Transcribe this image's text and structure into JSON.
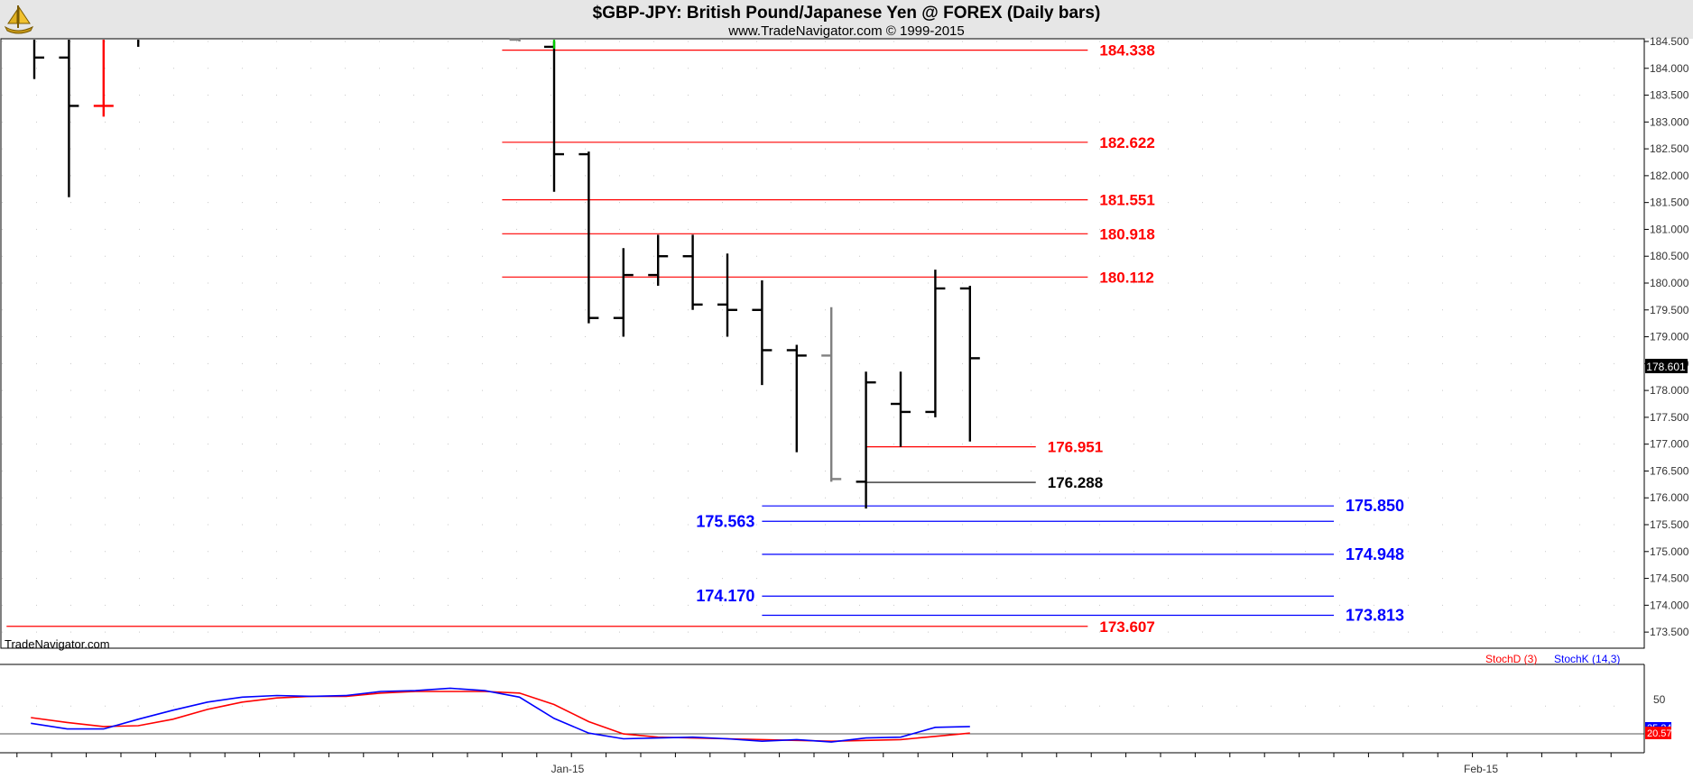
{
  "header": {
    "title": "$GBP-JPY:  British Pound/Japanese Yen @ FOREX  (Daily bars)",
    "subtitle": "www.TradeNavigator.com © 1999-2015",
    "logo_icon": "gold-ship-logo-icon"
  },
  "colors": {
    "background": "#ffffff",
    "header_bg": "#e6e6e6",
    "bar": "#000000",
    "bar_gray": "#808080",
    "bar_red": "#ff0000",
    "bar_green": "#00cc00",
    "red_level": "#ff0000",
    "blue_level": "#0000ff",
    "black_level": "#000000",
    "stoch_d": "#ff0000",
    "stoch_k": "#0000ff"
  },
  "chart_data": [
    {
      "type": "ohlc",
      "title": "$GBP-JPY:  British Pound/Japanese Yen @ FOREX  (Daily bars)",
      "ylim": [
        173.2,
        184.55
      ],
      "y_ticks": [
        "184.500",
        "184.000",
        "183.500",
        "183.000",
        "182.500",
        "182.000",
        "181.500",
        "181.000",
        "180.500",
        "180.000",
        "179.500",
        "179.000",
        "178.500",
        "178.000",
        "177.500",
        "177.000",
        "176.500",
        "176.000",
        "175.500",
        "175.000",
        "174.500",
        "174.000",
        "173.500"
      ],
      "x_labels": [
        "Jan-15",
        "Feb-15"
      ],
      "last_price": "178.601",
      "watermark": "TradeNavigator.com",
      "bars": [
        {
          "idx": 0,
          "open": null,
          "high": 184.6,
          "low": 183.8,
          "close": 184.2,
          "color": "black"
        },
        {
          "idx": 1,
          "open": 184.2,
          "high": 184.6,
          "low": 181.6,
          "close": 183.3,
          "color": "black"
        },
        {
          "idx": 2,
          "open": 183.3,
          "high": 184.6,
          "low": 183.1,
          "close": 183.3,
          "color": "red"
        },
        {
          "idx": 3,
          "open": null,
          "high": 184.6,
          "low": 184.4,
          "close": null,
          "color": "black"
        },
        {
          "idx": 14,
          "open": 184.6,
          "high": 184.6,
          "low": 184.5,
          "close": null,
          "color": "gray"
        },
        {
          "idx": 15,
          "open": 184.4,
          "high": 184.5,
          "low": 181.7,
          "close": 182.4,
          "color": "black"
        },
        {
          "idx": 16,
          "open": 182.4,
          "high": 182.45,
          "low": 179.25,
          "close": 179.35,
          "color": "black"
        },
        {
          "idx": 17,
          "open": 179.35,
          "high": 180.65,
          "low": 179.0,
          "close": 180.15,
          "color": "black"
        },
        {
          "idx": 18,
          "open": 180.15,
          "high": 180.9,
          "low": 179.95,
          "close": 180.5,
          "color": "black"
        },
        {
          "idx": 19,
          "open": 180.5,
          "high": 180.9,
          "low": 179.5,
          "close": 179.6,
          "color": "black"
        },
        {
          "idx": 20,
          "open": 179.6,
          "high": 180.55,
          "low": 179.0,
          "close": 179.5,
          "color": "black"
        },
        {
          "idx": 21,
          "open": 179.5,
          "high": 180.05,
          "low": 178.1,
          "close": 178.75,
          "color": "black"
        },
        {
          "idx": 22,
          "open": 178.75,
          "high": 178.85,
          "low": 176.85,
          "close": 178.65,
          "color": "black"
        },
        {
          "idx": 23,
          "open": 178.65,
          "high": 179.55,
          "low": 176.3,
          "close": 176.35,
          "color": "gray"
        },
        {
          "idx": 24,
          "open": 176.3,
          "high": 178.35,
          "low": 175.8,
          "close": 178.15,
          "color": "black"
        },
        {
          "idx": 25,
          "open": 177.75,
          "high": 178.35,
          "low": 176.95,
          "close": 177.6,
          "color": "black"
        },
        {
          "idx": 26,
          "open": 177.6,
          "high": 180.25,
          "low": 177.5,
          "close": 179.9,
          "color": "black"
        },
        {
          "idx": 27,
          "open": 179.9,
          "high": 179.95,
          "low": 177.05,
          "close": 178.6,
          "color": "black"
        }
      ],
      "levels": [
        {
          "value": 184.338,
          "label": "184.338",
          "color": "red",
          "from_idx": 13.5,
          "to_idx": 30.4,
          "label_side": "right"
        },
        {
          "value": 182.622,
          "label": "182.622",
          "color": "red",
          "from_idx": 13.5,
          "to_idx": 30.4,
          "label_side": "right"
        },
        {
          "value": 181.551,
          "label": "181.551",
          "color": "red",
          "from_idx": 13.5,
          "to_idx": 30.4,
          "label_side": "right"
        },
        {
          "value": 180.918,
          "label": "180.918",
          "color": "red",
          "from_idx": 13.5,
          "to_idx": 30.4,
          "label_side": "right"
        },
        {
          "value": 180.112,
          "label": "180.112",
          "color": "red",
          "from_idx": 13.5,
          "to_idx": 30.4,
          "label_side": "right"
        },
        {
          "value": 176.951,
          "label": "176.951",
          "color": "red",
          "from_idx": 24.0,
          "to_idx": 28.9,
          "label_side": "right"
        },
        {
          "value": 176.288,
          "label": "176.288",
          "color": "black",
          "from_idx": 24.0,
          "to_idx": 28.9,
          "label_side": "right"
        },
        {
          "value": 175.85,
          "label": "175.850",
          "color": "blue",
          "from_idx": 21.0,
          "to_idx": 37.5,
          "label_side": "right"
        },
        {
          "value": 175.563,
          "label": "175.563",
          "color": "blue",
          "from_idx": 21.0,
          "to_idx": 37.5,
          "label_side": "left"
        },
        {
          "value": 174.948,
          "label": "174.948",
          "color": "blue",
          "from_idx": 21.0,
          "to_idx": 37.5,
          "label_side": "right"
        },
        {
          "value": 174.17,
          "label": "174.170",
          "color": "blue",
          "from_idx": 21.0,
          "to_idx": 37.5,
          "label_side": "left"
        },
        {
          "value": 173.813,
          "label": "173.813",
          "color": "blue",
          "from_idx": 21.0,
          "to_idx": 37.5,
          "label_side": "right"
        },
        {
          "value": 173.607,
          "label": "173.607",
          "color": "red",
          "from_idx": -0.8,
          "to_idx": 30.4,
          "label_side": "right"
        }
      ]
    },
    {
      "type": "line",
      "ylim": [
        -6,
        100
      ],
      "y_ticks": [
        "50"
      ],
      "reference_line": 20,
      "legend": [
        "StochD (3)",
        "StochK (14,3)"
      ],
      "x": [
        -0.1,
        0.95,
        2,
        3,
        4,
        5,
        6,
        7,
        8,
        9,
        10,
        11,
        12,
        13,
        14,
        15,
        16,
        17,
        18,
        19,
        20,
        21,
        22,
        23,
        24,
        25,
        26,
        27
      ],
      "series": [
        {
          "name": "StochD (3)",
          "color": "red",
          "values": [
            36,
            30,
            25,
            26,
            34,
            46,
            55,
            60,
            62,
            62,
            66,
            68,
            68,
            68,
            66,
            52,
            31,
            16,
            12,
            11,
            10,
            9,
            8,
            7,
            8,
            9,
            13,
            17
          ]
        },
        {
          "name": "StochK (14,3)",
          "color": "blue",
          "values": [
            29,
            22,
            22,
            34,
            45,
            55,
            61,
            63,
            62,
            63,
            68,
            69,
            72,
            69,
            61,
            35,
            17,
            10,
            11,
            12,
            10,
            7,
            9,
            6,
            11,
            12,
            24,
            25
          ]
        }
      ],
      "last_values": [
        "25.24",
        "20.57"
      ]
    }
  ]
}
